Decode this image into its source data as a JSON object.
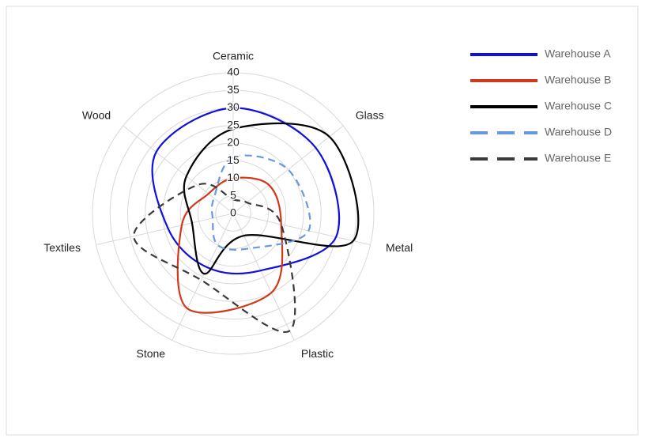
{
  "chart_data": {
    "type": "radar",
    "categories": [
      "Ceramic",
      "Glass",
      "Metal",
      "Plastic",
      "Stone",
      "Textiles",
      "Wood"
    ],
    "series": [
      {
        "name": "Warehouse A",
        "color": "#1010dd",
        "dash": false,
        "values": [
          30,
          30,
          30,
          18,
          17,
          19,
          28
        ]
      },
      {
        "name": "Warehouse B",
        "color": "#d0391b",
        "dash": false,
        "values": [
          10,
          13,
          14,
          25,
          30,
          15,
          9
        ]
      },
      {
        "name": "Warehouse C",
        "color": "#000000",
        "dash": false,
        "values": [
          24,
          35,
          35,
          7,
          19,
          12,
          17
        ]
      },
      {
        "name": "Warehouse D",
        "color": "#6699dd",
        "dash": true,
        "values": [
          16,
          20,
          22,
          11,
          10,
          6,
          7
        ]
      },
      {
        "name": "Warehouse E",
        "color": "#3a3a3a",
        "dash": true,
        "values": [
          4,
          5,
          14,
          37,
          21,
          29,
          13
        ]
      }
    ],
    "rlim": [
      0,
      40
    ],
    "rticks": [
      0,
      5,
      10,
      15,
      20,
      25,
      30,
      35,
      40
    ],
    "grid": true,
    "legend": "upper right"
  }
}
